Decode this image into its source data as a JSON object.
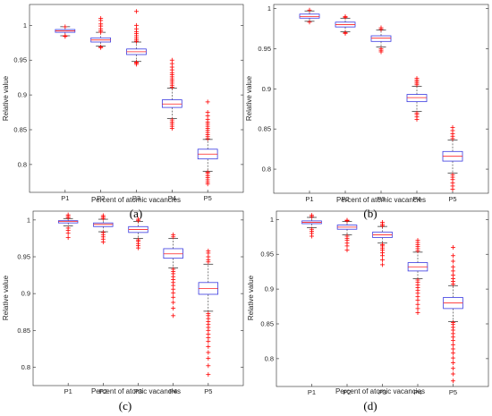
{
  "colors": {
    "box": "#3a3ae0",
    "median": "#ff2020",
    "outlier": "#ff0000",
    "whisker": "#000000",
    "axis": "#262626"
  },
  "chart_data": [
    {
      "type": "box",
      "caption": "(a)",
      "xlabel": "Percent of atomic vacancies",
      "ylabel": "Relative value",
      "categories": [
        "P1",
        "P2",
        "P3",
        "P4",
        "P5"
      ],
      "ylim": [
        0.76,
        1.03
      ],
      "yticks": [
        0.8,
        0.85,
        0.9,
        0.95,
        1
      ],
      "ytick_labels": [
        "0.8",
        "0.85",
        "0.9",
        "0.95",
        "1"
      ],
      "boxes": [
        {
          "q1": 0.99,
          "median": 0.992,
          "q3": 0.994,
          "whislo": 0.985,
          "whishi": 0.998,
          "out_lo": [
            0.985,
            0.984
          ],
          "out_hi": [
            0.998
          ]
        },
        {
          "q1": 0.976,
          "median": 0.979,
          "q3": 0.982,
          "whislo": 0.97,
          "whishi": 0.99,
          "out_lo": [
            0.969,
            0.968
          ],
          "out_hi": [
            0.99,
            0.992,
            0.995,
            0.999,
            1.002,
            1.007,
            1.01
          ]
        },
        {
          "q1": 0.958,
          "median": 0.962,
          "q3": 0.966,
          "whislo": 0.948,
          "whishi": 0.976,
          "out_lo": [
            0.944,
            0.946,
            0.947
          ],
          "out_hi": [
            0.977,
            0.979,
            0.982,
            0.985,
            0.988,
            0.991,
            0.995,
            1.0,
            1.02
          ]
        },
        {
          "q1": 0.882,
          "median": 0.887,
          "q3": 0.893,
          "whislo": 0.866,
          "whishi": 0.91,
          "out_lo": [
            0.852,
            0.855,
            0.858,
            0.861,
            0.864
          ],
          "out_hi": [
            0.911,
            0.914,
            0.917,
            0.92,
            0.923,
            0.926,
            0.929,
            0.932,
            0.936,
            0.94,
            0.945,
            0.95
          ]
        },
        {
          "q1": 0.808,
          "median": 0.815,
          "q3": 0.822,
          "whislo": 0.79,
          "whishi": 0.836,
          "out_lo": [
            0.772,
            0.775,
            0.778,
            0.781,
            0.784,
            0.787,
            0.789
          ],
          "out_hi": [
            0.837,
            0.84,
            0.843,
            0.846,
            0.849,
            0.852,
            0.855,
            0.858,
            0.861,
            0.865,
            0.87,
            0.875,
            0.89
          ]
        }
      ]
    },
    {
      "type": "box",
      "caption": "(b)",
      "xlabel": "Percent of atomic vacancies",
      "ylabel": "Relative value",
      "categories": [
        "P1",
        "P2",
        "P3",
        "P4",
        "P5"
      ],
      "ylim": [
        0.77,
        1.005
      ],
      "yticks": [
        0.8,
        0.85,
        0.9,
        0.95,
        1
      ],
      "ytick_labels": [
        "0.8",
        "0.85",
        "0.9",
        "0.95",
        "1"
      ],
      "boxes": [
        {
          "q1": 0.988,
          "median": 0.99,
          "q3": 0.993,
          "whislo": 0.984,
          "whishi": 0.997,
          "out_lo": [
            0.983
          ],
          "out_hi": [
            0.998
          ]
        },
        {
          "q1": 0.977,
          "median": 0.98,
          "q3": 0.983,
          "whislo": 0.971,
          "whishi": 0.988,
          "out_lo": [
            0.969,
            0.97
          ],
          "out_hi": [
            0.989,
            0.99
          ]
        },
        {
          "q1": 0.959,
          "median": 0.963,
          "q3": 0.966,
          "whislo": 0.952,
          "whishi": 0.973,
          "out_lo": [
            0.946,
            0.948,
            0.95
          ],
          "out_hi": [
            0.974,
            0.976
          ]
        },
        {
          "q1": 0.884,
          "median": 0.889,
          "q3": 0.893,
          "whislo": 0.872,
          "whishi": 0.903,
          "out_lo": [
            0.862,
            0.865,
            0.868,
            0.87
          ],
          "out_hi": [
            0.905,
            0.907,
            0.909,
            0.911,
            0.913
          ]
        },
        {
          "q1": 0.81,
          "median": 0.816,
          "q3": 0.822,
          "whislo": 0.795,
          "whishi": 0.836,
          "out_lo": [
            0.775,
            0.779,
            0.783,
            0.787,
            0.79,
            0.793
          ],
          "out_hi": [
            0.838,
            0.841,
            0.844,
            0.848,
            0.852
          ]
        }
      ]
    },
    {
      "type": "box",
      "caption": "(c)",
      "xlabel": "Percent of atomic vacancies",
      "ylabel": "Relative value",
      "categories": [
        "P1",
        "P2",
        "P3",
        "P4",
        "P5"
      ],
      "ylim": [
        0.775,
        1.012
      ],
      "yticks": [
        0.8,
        0.85,
        0.9,
        0.95,
        1
      ],
      "ytick_labels": [
        "0.8",
        "0.85",
        "0.9",
        "0.95",
        "1"
      ],
      "boxes": [
        {
          "q1": 0.996,
          "median": 0.998,
          "q3": 0.999,
          "whislo": 0.992,
          "whishi": 1.002,
          "out_lo": [
            0.976,
            0.982,
            0.986,
            0.989
          ],
          "out_hi": [
            1.003,
            1.005,
            1.007
          ]
        },
        {
          "q1": 0.991,
          "median": 0.994,
          "q3": 0.996,
          "whislo": 0.984,
          "whishi": 1.001,
          "out_lo": [
            0.97,
            0.974,
            0.977,
            0.98,
            0.983
          ],
          "out_hi": [
            1.002,
            1.004,
            1.006
          ]
        },
        {
          "q1": 0.983,
          "median": 0.987,
          "q3": 0.991,
          "whislo": 0.975,
          "whishi": 0.998,
          "out_lo": [
            0.962,
            0.965,
            0.968,
            0.971,
            0.973
          ],
          "out_hi": [
            0.999,
            1.001
          ]
        },
        {
          "q1": 0.948,
          "median": 0.954,
          "q3": 0.961,
          "whislo": 0.935,
          "whishi": 0.975,
          "out_lo": [
            0.87,
            0.88,
            0.888,
            0.895,
            0.901,
            0.906,
            0.911,
            0.915,
            0.919,
            0.923,
            0.927,
            0.93,
            0.933
          ],
          "out_hi": [
            0.977,
            0.98
          ]
        },
        {
          "q1": 0.899,
          "median": 0.907,
          "q3": 0.915,
          "whislo": 0.876,
          "whishi": 0.94,
          "out_lo": [
            0.79,
            0.802,
            0.812,
            0.82,
            0.828,
            0.835,
            0.84,
            0.845,
            0.85,
            0.854,
            0.858,
            0.862,
            0.866,
            0.87,
            0.873
          ],
          "out_hi": [
            0.943,
            0.946,
            0.95,
            0.955,
            0.958
          ]
        }
      ]
    },
    {
      "type": "box",
      "caption": "(d)",
      "xlabel": "Percent of atomic vacancies",
      "ylabel": "Relative value",
      "categories": [
        "P1",
        "P2",
        "P3",
        "P4",
        "P5"
      ],
      "ylim": [
        0.76,
        1.012
      ],
      "yticks": [
        0.8,
        0.85,
        0.9,
        0.95,
        1
      ],
      "ytick_labels": [
        "0.8",
        "0.85",
        "0.9",
        "0.95",
        "1"
      ],
      "boxes": [
        {
          "q1": 0.994,
          "median": 0.996,
          "q3": 0.998,
          "whislo": 0.988,
          "whishi": 1.003,
          "out_lo": [
            0.976,
            0.98,
            0.983,
            0.986
          ],
          "out_hi": [
            1.004,
            1.006
          ]
        },
        {
          "q1": 0.986,
          "median": 0.989,
          "q3": 0.992,
          "whislo": 0.978,
          "whishi": 0.997,
          "out_lo": [
            0.956,
            0.962,
            0.966,
            0.97,
            0.973,
            0.976
          ],
          "out_hi": [
            0.998,
            0.999
          ]
        },
        {
          "q1": 0.974,
          "median": 0.978,
          "q3": 0.982,
          "whislo": 0.966,
          "whishi": 0.99,
          "out_lo": [
            0.935,
            0.942,
            0.948,
            0.952,
            0.956,
            0.959,
            0.962,
            0.964
          ],
          "out_hi": [
            0.991,
            0.993,
            0.996
          ]
        },
        {
          "q1": 0.926,
          "median": 0.932,
          "q3": 0.938,
          "whislo": 0.915,
          "whishi": 0.953,
          "out_lo": [
            0.866,
            0.872,
            0.878,
            0.884,
            0.889,
            0.894,
            0.898,
            0.902,
            0.906,
            0.91,
            0.913
          ],
          "out_hi": [
            0.955,
            0.958,
            0.961,
            0.964,
            0.967,
            0.97
          ]
        },
        {
          "q1": 0.872,
          "median": 0.88,
          "q3": 0.888,
          "whislo": 0.853,
          "whishi": 0.905,
          "out_lo": [
            0.768,
            0.778,
            0.786,
            0.794,
            0.801,
            0.808,
            0.814,
            0.82,
            0.826,
            0.831,
            0.836,
            0.841,
            0.845,
            0.849,
            0.852
          ],
          "out_hi": [
            0.907,
            0.911,
            0.915,
            0.92,
            0.926,
            0.932,
            0.94,
            0.948,
            0.96
          ]
        }
      ]
    }
  ]
}
